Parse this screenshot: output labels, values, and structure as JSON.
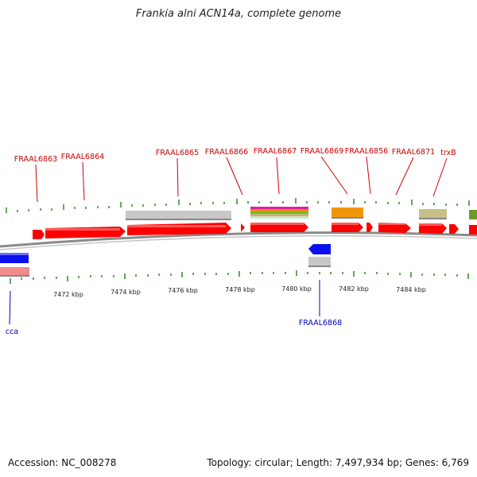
{
  "title": "Frankia alni ACN14a, complete genome",
  "footer": {
    "accession": "Accession: NC_008278",
    "summary": "Topology: circular; Length: 7,497,934 bp; Genes: 6,769"
  },
  "colors": {
    "gene_forward": "#ff0000",
    "gene_reverse": "#0000ff",
    "label_forward": "#cc0000",
    "label_reverse": "#0000bb",
    "tick": "#2e8b1e",
    "backbone": "#888888"
  },
  "kbp_labels": [
    {
      "text": "7472 kbp"
    },
    {
      "text": "7474 kbp"
    },
    {
      "text": "7476 kbp"
    },
    {
      "text": "7478 kbp"
    },
    {
      "text": "7480 kbp"
    },
    {
      "text": "7482 kbp"
    },
    {
      "text": "7484 kbp"
    }
  ],
  "gene_labels": [
    {
      "text": "FRAAL6863",
      "strand": "forward"
    },
    {
      "text": "FRAAL6864",
      "strand": "forward"
    },
    {
      "text": "FRAAL6865",
      "strand": "forward"
    },
    {
      "text": "FRAAL6866",
      "strand": "forward"
    },
    {
      "text": "FRAAL6867",
      "strand": "forward"
    },
    {
      "text": "FRAAL6869",
      "strand": "forward"
    },
    {
      "text": "FRAAL6856",
      "strand": "forward"
    },
    {
      "text": "FRAAL6871",
      "strand": "forward"
    },
    {
      "text": "trxB",
      "strand": "forward"
    },
    {
      "text": "FRAAL6868",
      "strand": "reverse"
    },
    {
      "text": "cca",
      "strand": "reverse"
    }
  ]
}
